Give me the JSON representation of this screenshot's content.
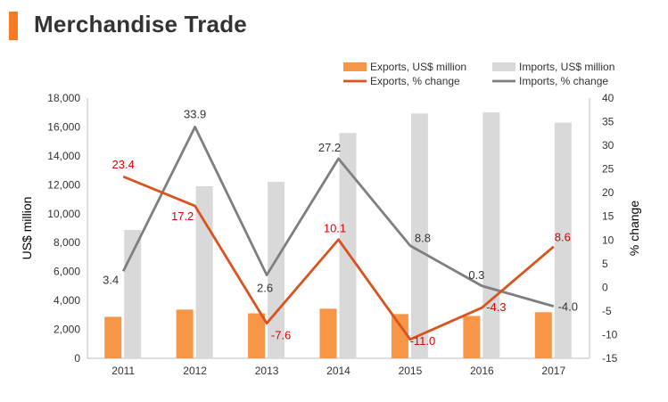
{
  "header": {
    "title": "Merchandise Trade"
  },
  "colors": {
    "accent": "#f47b20",
    "exports_bar": "#f79646",
    "imports_bar": "#d9d9d9",
    "exports_line": "#d9531e",
    "imports_line": "#7f7f7f",
    "negative_label": "#e00000",
    "text": "#333333"
  },
  "chart_data": {
    "type": "bar",
    "categories": [
      "2011",
      "2012",
      "2013",
      "2014",
      "2015",
      "2016",
      "2017"
    ],
    "series": [
      {
        "name": "Exports, US$ million",
        "kind": "bar",
        "axis": "left",
        "values": [
          2870,
          3370,
          3110,
          3430,
          3060,
          2930,
          3190
        ]
      },
      {
        "name": "Imports, US$ million",
        "kind": "bar",
        "axis": "left",
        "values": [
          8880,
          11900,
          12200,
          15580,
          16930,
          17010,
          16300
        ]
      },
      {
        "name": "Exports, % change",
        "kind": "line",
        "axis": "right",
        "values": [
          23.4,
          17.2,
          -7.6,
          10.1,
          -11.0,
          -4.3,
          8.6
        ],
        "labels": [
          "23.4",
          "17.2",
          "-7.6",
          "10.1",
          "-11.0",
          "-4.3",
          "8.6"
        ]
      },
      {
        "name": "Imports, % change",
        "kind": "line",
        "axis": "right",
        "values": [
          3.4,
          33.9,
          2.6,
          27.2,
          8.8,
          0.3,
          -4.0
        ],
        "labels": [
          "3.4",
          "33.9",
          "2.6",
          "27.2",
          "8.8",
          "0.3",
          "-4.0"
        ]
      }
    ],
    "ylabel": "US$ million",
    "y2label": "% change",
    "ylim": [
      0,
      18000
    ],
    "y2lim": [
      -15,
      40
    ],
    "yticks": [
      "0",
      "2,000",
      "4,000",
      "6,000",
      "8,000",
      "10,000",
      "12,000",
      "14,000",
      "16,000",
      "18,000"
    ],
    "y2ticks": [
      "-15",
      "-10",
      "-5",
      "0",
      "5",
      "10",
      "15",
      "20",
      "25",
      "30",
      "35",
      "40"
    ],
    "legend_position": "top-right",
    "grid": false
  }
}
